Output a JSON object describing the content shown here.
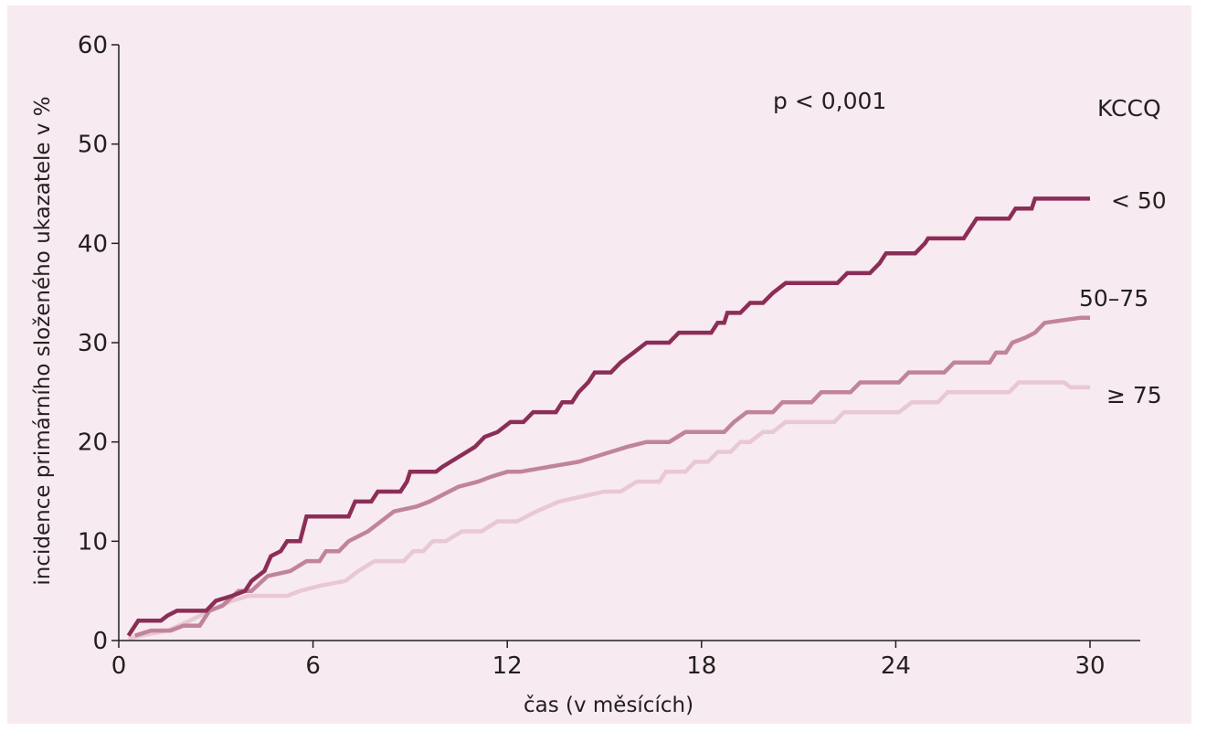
{
  "chart_data": {
    "type": "line",
    "title": "",
    "xlabel": "čas (v měsících)",
    "ylabel": "incidence primárního složeného ukazatele v %",
    "xlim": [
      0,
      30
    ],
    "ylim": [
      0,
      60
    ],
    "x_ticks": [
      0,
      6,
      12,
      18,
      24,
      30
    ],
    "y_ticks": [
      0,
      10,
      20,
      30,
      40,
      50,
      60
    ],
    "grid": false,
    "annotation": "p < 0,001",
    "legend_title": "KCCQ",
    "series": [
      {
        "name": "< 50",
        "color": "#8b2e57",
        "points": [
          [
            0.3,
            0.5
          ],
          [
            0.6,
            2
          ],
          [
            1.3,
            2
          ],
          [
            1.5,
            2.5
          ],
          [
            1.8,
            3
          ],
          [
            2.7,
            3
          ],
          [
            3,
            4
          ],
          [
            3.5,
            4.5
          ],
          [
            3.9,
            5
          ],
          [
            4.1,
            6
          ],
          [
            4.5,
            7
          ],
          [
            4.7,
            8.5
          ],
          [
            5,
            9
          ],
          [
            5.2,
            10
          ],
          [
            5.6,
            10
          ],
          [
            5.8,
            12.5
          ],
          [
            7.1,
            12.5
          ],
          [
            7.3,
            14
          ],
          [
            7.8,
            14
          ],
          [
            8,
            15
          ],
          [
            8.7,
            15
          ],
          [
            8.9,
            16
          ],
          [
            9,
            17
          ],
          [
            9.8,
            17
          ],
          [
            10,
            17.5
          ],
          [
            10.5,
            18.5
          ],
          [
            11,
            19.5
          ],
          [
            11.3,
            20.5
          ],
          [
            11.7,
            21
          ],
          [
            12.1,
            22
          ],
          [
            12.5,
            22
          ],
          [
            12.8,
            23
          ],
          [
            13.5,
            23
          ],
          [
            13.7,
            24
          ],
          [
            14,
            24
          ],
          [
            14.2,
            25
          ],
          [
            14.5,
            26
          ],
          [
            14.7,
            27
          ],
          [
            15.2,
            27
          ],
          [
            15.5,
            28
          ],
          [
            15.9,
            29
          ],
          [
            16.3,
            30
          ],
          [
            17,
            30
          ],
          [
            17.3,
            31
          ],
          [
            18.3,
            31
          ],
          [
            18.5,
            32
          ],
          [
            18.7,
            32
          ],
          [
            18.8,
            33
          ],
          [
            19.2,
            33
          ],
          [
            19.5,
            34
          ],
          [
            19.9,
            34
          ],
          [
            20.2,
            35
          ],
          [
            20.6,
            36
          ],
          [
            22.2,
            36
          ],
          [
            22.5,
            37
          ],
          [
            23.2,
            37
          ],
          [
            23.5,
            38
          ],
          [
            23.7,
            39
          ],
          [
            24.6,
            39
          ],
          [
            24.9,
            40
          ],
          [
            25,
            40.5
          ],
          [
            26.1,
            40.5
          ],
          [
            26.3,
            41.5
          ],
          [
            26.5,
            42.5
          ],
          [
            27.5,
            42.5
          ],
          [
            27.7,
            43.5
          ],
          [
            28.2,
            43.5
          ],
          [
            28.3,
            44.5
          ],
          [
            30,
            44.5
          ]
        ]
      },
      {
        "name": "50–75",
        "color": "#c0849a",
        "points": [
          [
            0.5,
            0.5
          ],
          [
            1,
            1
          ],
          [
            1.6,
            1
          ],
          [
            2,
            1.5
          ],
          [
            2.5,
            1.5
          ],
          [
            2.8,
            3
          ],
          [
            3.2,
            3.5
          ],
          [
            3.7,
            5
          ],
          [
            4.1,
            5
          ],
          [
            4.6,
            6.5
          ],
          [
            5.3,
            7
          ],
          [
            5.8,
            8
          ],
          [
            6.2,
            8
          ],
          [
            6.4,
            9
          ],
          [
            6.8,
            9
          ],
          [
            7.1,
            10
          ],
          [
            7.7,
            11
          ],
          [
            8.1,
            12
          ],
          [
            8.5,
            13
          ],
          [
            9.2,
            13.5
          ],
          [
            9.6,
            14
          ],
          [
            10.2,
            15
          ],
          [
            10.5,
            15.5
          ],
          [
            11.1,
            16
          ],
          [
            11.5,
            16.5
          ],
          [
            12,
            17
          ],
          [
            12.4,
            17
          ],
          [
            13.3,
            17.5
          ],
          [
            14.2,
            18
          ],
          [
            14.7,
            18.5
          ],
          [
            15.2,
            19
          ],
          [
            15.7,
            19.5
          ],
          [
            16.3,
            20
          ],
          [
            17,
            20
          ],
          [
            17.5,
            21
          ],
          [
            18.7,
            21
          ],
          [
            19,
            22
          ],
          [
            19.4,
            23
          ],
          [
            20.2,
            23
          ],
          [
            20.5,
            24
          ],
          [
            21.4,
            24
          ],
          [
            21.7,
            25
          ],
          [
            22.6,
            25
          ],
          [
            22.9,
            26
          ],
          [
            24.1,
            26
          ],
          [
            24.4,
            27
          ],
          [
            25.5,
            27
          ],
          [
            25.8,
            28
          ],
          [
            26.9,
            28
          ],
          [
            27.1,
            29
          ],
          [
            27.4,
            29
          ],
          [
            27.6,
            30
          ],
          [
            28,
            30.5
          ],
          [
            28.3,
            31
          ],
          [
            28.6,
            32
          ],
          [
            29.7,
            32.5
          ],
          [
            30,
            32.5
          ]
        ]
      },
      {
        "name": "≥ 75",
        "color": "#e8c8d3",
        "points": [
          [
            0.3,
            0.2
          ],
          [
            0.7,
            0.5
          ],
          [
            1.5,
            1
          ],
          [
            2.2,
            2
          ],
          [
            2.8,
            3
          ],
          [
            3.5,
            4
          ],
          [
            4,
            4.5
          ],
          [
            5.2,
            4.5
          ],
          [
            5.6,
            5
          ],
          [
            6.2,
            5.5
          ],
          [
            7,
            6
          ],
          [
            7.4,
            7
          ],
          [
            7.9,
            8
          ],
          [
            8.8,
            8
          ],
          [
            9.1,
            9
          ],
          [
            9.4,
            9
          ],
          [
            9.7,
            10
          ],
          [
            10.1,
            10
          ],
          [
            10.6,
            11
          ],
          [
            11.2,
            11
          ],
          [
            11.7,
            12
          ],
          [
            12.3,
            12
          ],
          [
            12.9,
            13
          ],
          [
            13.6,
            14
          ],
          [
            14.3,
            14.5
          ],
          [
            15,
            15
          ],
          [
            15.5,
            15
          ],
          [
            16,
            16
          ],
          [
            16.7,
            16
          ],
          [
            16.9,
            17
          ],
          [
            17.5,
            17
          ],
          [
            17.8,
            18
          ],
          [
            18.2,
            18
          ],
          [
            18.5,
            19
          ],
          [
            18.9,
            19
          ],
          [
            19.2,
            20
          ],
          [
            19.5,
            20
          ],
          [
            19.9,
            21
          ],
          [
            20.2,
            21
          ],
          [
            20.6,
            22
          ],
          [
            22.1,
            22
          ],
          [
            22.4,
            23
          ],
          [
            24.1,
            23
          ],
          [
            24.5,
            24
          ],
          [
            25.3,
            24
          ],
          [
            25.6,
            25
          ],
          [
            27.5,
            25
          ],
          [
            27.8,
            26
          ],
          [
            29.2,
            26
          ],
          [
            29.4,
            25.5
          ],
          [
            30,
            25.5
          ]
        ]
      }
    ]
  }
}
